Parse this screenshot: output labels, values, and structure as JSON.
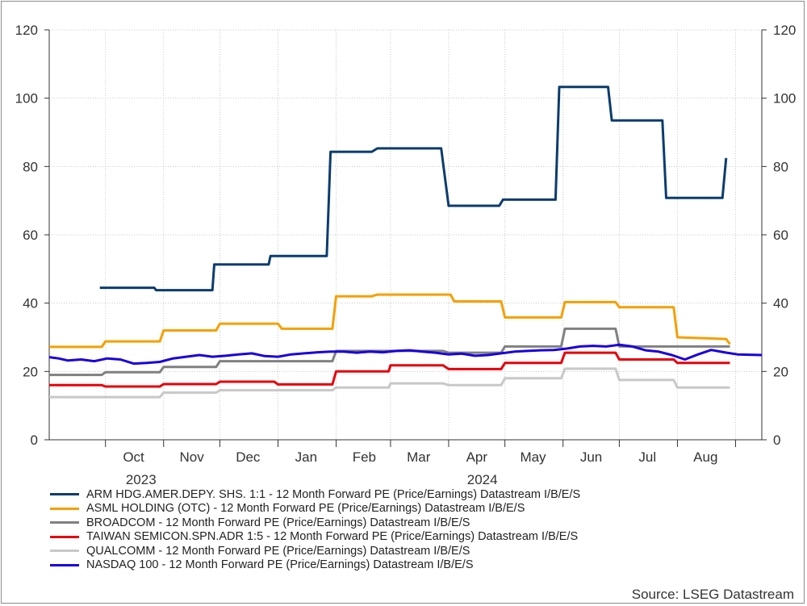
{
  "chart_data": {
    "type": "line",
    "source": "Source: LSEG Datastream",
    "ylim": [
      0,
      120
    ],
    "yticks": [
      0,
      20,
      40,
      60,
      80,
      100,
      120
    ],
    "xlim": [
      "2023-09-01",
      "2024-09-15"
    ],
    "xticks": [
      {
        "date": "2023-10-01",
        "label": "Oct"
      },
      {
        "date": "2023-11-01",
        "label": "Nov"
      },
      {
        "date": "2023-12-01",
        "label": "Dec"
      },
      {
        "date": "2024-01-01",
        "label": "Jan"
      },
      {
        "date": "2024-02-01",
        "label": "Feb"
      },
      {
        "date": "2024-03-01",
        "label": "Mar"
      },
      {
        "date": "2024-04-01",
        "label": "Apr"
      },
      {
        "date": "2024-05-01",
        "label": "May"
      },
      {
        "date": "2024-06-01",
        "label": "Jun"
      },
      {
        "date": "2024-07-01",
        "label": "Jul"
      },
      {
        "date": "2024-08-01",
        "label": "Aug"
      }
    ],
    "year_labels": [
      {
        "date": "2023-11-01",
        "label": "2023"
      },
      {
        "date": "2024-05-01",
        "label": "2024"
      }
    ],
    "grid": true,
    "legend_position": "bottom",
    "series": [
      {
        "name": "ARM HDG.AMER.DEPY. SHS. 1:1 - 12 Month Forward PE (Price/Earnings) Datastream I/B/E/S",
        "color": "#0b3c6e",
        "points": [
          [
            "2023-09-28",
            44.5
          ],
          [
            "2023-10-27",
            44.5
          ],
          [
            "2023-10-28",
            43.8
          ],
          [
            "2023-11-27",
            43.8
          ],
          [
            "2023-11-28",
            51.3
          ],
          [
            "2023-12-27",
            51.3
          ],
          [
            "2023-12-28",
            53.8
          ],
          [
            "2024-01-27",
            53.8
          ],
          [
            "2024-01-29",
            84.3
          ],
          [
            "2024-02-20",
            84.3
          ],
          [
            "2024-02-23",
            85.3
          ],
          [
            "2024-03-28",
            85.3
          ],
          [
            "2024-04-01",
            68.5
          ],
          [
            "2024-04-28",
            68.5
          ],
          [
            "2024-04-30",
            70.3
          ],
          [
            "2024-05-28",
            70.3
          ],
          [
            "2024-05-30",
            103.3
          ],
          [
            "2024-06-25",
            103.3
          ],
          [
            "2024-06-27",
            93.5
          ],
          [
            "2024-07-24",
            93.5
          ],
          [
            "2024-07-26",
            70.8
          ],
          [
            "2024-08-25",
            70.8
          ],
          [
            "2024-08-27",
            82.5
          ]
        ]
      },
      {
        "name": "ASML HOLDING (OTC) - 12 Month Forward PE (Price/Earnings) Datastream I/B/E/S",
        "color": "#f5a000",
        "points": [
          [
            "2023-09-01",
            27.2
          ],
          [
            "2023-09-29",
            27.2
          ],
          [
            "2023-10-01",
            28.8
          ],
          [
            "2023-10-30",
            28.8
          ],
          [
            "2023-11-01",
            32.0
          ],
          [
            "2023-11-29",
            32.0
          ],
          [
            "2023-12-01",
            34.0
          ],
          [
            "2024-01-01",
            34.0
          ],
          [
            "2024-01-03",
            32.5
          ],
          [
            "2024-01-30",
            32.5
          ],
          [
            "2024-02-01",
            42.0
          ],
          [
            "2024-02-20",
            42.0
          ],
          [
            "2024-02-23",
            42.5
          ],
          [
            "2024-04-02",
            42.5
          ],
          [
            "2024-04-04",
            40.5
          ],
          [
            "2024-04-29",
            40.5
          ],
          [
            "2024-05-01",
            35.8
          ],
          [
            "2024-05-31",
            35.8
          ],
          [
            "2024-06-02",
            40.3
          ],
          [
            "2024-06-29",
            40.3
          ],
          [
            "2024-07-01",
            38.8
          ],
          [
            "2024-07-30",
            38.8
          ],
          [
            "2024-08-01",
            30.0
          ],
          [
            "2024-08-27",
            29.5
          ],
          [
            "2024-08-29",
            28.0
          ]
        ]
      },
      {
        "name": "BROADCOM - 12 Month Forward PE (Price/Earnings) Datastream I/B/E/S",
        "color": "#808080",
        "points": [
          [
            "2023-09-01",
            19.0
          ],
          [
            "2023-09-29",
            19.0
          ],
          [
            "2023-10-01",
            19.8
          ],
          [
            "2023-10-30",
            19.8
          ],
          [
            "2023-11-01",
            21.3
          ],
          [
            "2023-11-29",
            21.3
          ],
          [
            "2023-12-01",
            23.0
          ],
          [
            "2024-01-30",
            23.0
          ],
          [
            "2024-02-01",
            26.0
          ],
          [
            "2024-03-29",
            26.0
          ],
          [
            "2024-04-01",
            25.5
          ],
          [
            "2024-04-29",
            25.5
          ],
          [
            "2024-05-01",
            27.3
          ],
          [
            "2024-05-31",
            27.3
          ],
          [
            "2024-06-02",
            32.5
          ],
          [
            "2024-06-29",
            32.5
          ],
          [
            "2024-07-01",
            27.3
          ],
          [
            "2024-08-29",
            27.3
          ]
        ]
      },
      {
        "name": "TAIWAN SEMICON.SPN.ADR 1:5 - 12 Month Forward PE (Price/Earnings) Datastream I/B/E/S",
        "color": "#e8000b",
        "points": [
          [
            "2023-09-01",
            16.0
          ],
          [
            "2023-09-29",
            16.0
          ],
          [
            "2023-10-01",
            15.6
          ],
          [
            "2023-10-30",
            15.6
          ],
          [
            "2023-11-01",
            16.3
          ],
          [
            "2023-11-29",
            16.3
          ],
          [
            "2023-12-01",
            17.0
          ],
          [
            "2023-12-30",
            17.0
          ],
          [
            "2024-01-01",
            16.2
          ],
          [
            "2024-01-30",
            16.2
          ],
          [
            "2024-02-01",
            20.0
          ],
          [
            "2024-02-29",
            20.0
          ],
          [
            "2024-03-01",
            21.8
          ],
          [
            "2024-03-29",
            21.8
          ],
          [
            "2024-04-01",
            20.7
          ],
          [
            "2024-04-29",
            20.7
          ],
          [
            "2024-05-01",
            22.5
          ],
          [
            "2024-05-31",
            22.5
          ],
          [
            "2024-06-02",
            25.5
          ],
          [
            "2024-06-29",
            25.5
          ],
          [
            "2024-07-01",
            23.5
          ],
          [
            "2024-07-30",
            23.5
          ],
          [
            "2024-08-01",
            22.5
          ],
          [
            "2024-08-29",
            22.5
          ]
        ]
      },
      {
        "name": "QUALCOMM - 12 Month Forward PE (Price/Earnings) Datastream I/B/E/S",
        "color": "#c8c8c8",
        "points": [
          [
            "2023-09-01",
            12.5
          ],
          [
            "2023-10-30",
            12.5
          ],
          [
            "2023-11-01",
            13.8
          ],
          [
            "2023-11-29",
            13.8
          ],
          [
            "2023-12-01",
            14.5
          ],
          [
            "2024-01-30",
            14.5
          ],
          [
            "2024-02-01",
            15.3
          ],
          [
            "2024-02-29",
            15.3
          ],
          [
            "2024-03-01",
            16.5
          ],
          [
            "2024-03-29",
            16.5
          ],
          [
            "2024-04-01",
            16.0
          ],
          [
            "2024-04-29",
            16.0
          ],
          [
            "2024-05-01",
            18.0
          ],
          [
            "2024-05-31",
            18.0
          ],
          [
            "2024-06-02",
            20.8
          ],
          [
            "2024-06-29",
            20.8
          ],
          [
            "2024-07-01",
            17.5
          ],
          [
            "2024-07-30",
            17.5
          ],
          [
            "2024-08-01",
            15.3
          ],
          [
            "2024-08-29",
            15.3
          ]
        ]
      },
      {
        "name": "NASDAQ 100 - 12 Month Forward PE (Price/Earnings) Datastream I/B/E/S",
        "color": "#1a00dd",
        "points": [
          [
            "2023-09-01",
            24.2
          ],
          [
            "2023-09-06",
            23.8
          ],
          [
            "2023-09-11",
            23.2
          ],
          [
            "2023-09-18",
            23.5
          ],
          [
            "2023-09-25",
            23.0
          ],
          [
            "2023-10-02",
            23.8
          ],
          [
            "2023-10-09",
            23.5
          ],
          [
            "2023-10-16",
            22.3
          ],
          [
            "2023-10-23",
            22.5
          ],
          [
            "2023-10-30",
            22.8
          ],
          [
            "2023-11-06",
            23.8
          ],
          [
            "2023-11-13",
            24.3
          ],
          [
            "2023-11-20",
            24.8
          ],
          [
            "2023-11-27",
            24.3
          ],
          [
            "2023-12-04",
            24.6
          ],
          [
            "2023-12-11",
            25.0
          ],
          [
            "2023-12-18",
            25.3
          ],
          [
            "2023-12-25",
            24.5
          ],
          [
            "2024-01-01",
            24.3
          ],
          [
            "2024-01-08",
            25.0
          ],
          [
            "2024-01-15",
            25.3
          ],
          [
            "2024-01-22",
            25.6
          ],
          [
            "2024-01-29",
            25.8
          ],
          [
            "2024-02-05",
            25.8
          ],
          [
            "2024-02-12",
            25.5
          ],
          [
            "2024-02-19",
            25.8
          ],
          [
            "2024-02-26",
            25.6
          ],
          [
            "2024-03-04",
            26.0
          ],
          [
            "2024-03-11",
            26.2
          ],
          [
            "2024-03-18",
            25.8
          ],
          [
            "2024-03-25",
            25.5
          ],
          [
            "2024-04-01",
            25.0
          ],
          [
            "2024-04-08",
            25.2
          ],
          [
            "2024-04-15",
            24.6
          ],
          [
            "2024-04-22",
            24.8
          ],
          [
            "2024-04-29",
            25.3
          ],
          [
            "2024-05-06",
            25.8
          ],
          [
            "2024-05-13",
            26.0
          ],
          [
            "2024-05-20",
            26.2
          ],
          [
            "2024-05-27",
            26.3
          ],
          [
            "2024-06-03",
            26.7
          ],
          [
            "2024-06-10",
            27.3
          ],
          [
            "2024-06-17",
            27.5
          ],
          [
            "2024-06-24",
            27.3
          ],
          [
            "2024-07-01",
            27.8
          ],
          [
            "2024-07-08",
            27.3
          ],
          [
            "2024-07-15",
            26.2
          ],
          [
            "2024-07-22",
            25.8
          ],
          [
            "2024-07-29",
            24.8
          ],
          [
            "2024-08-05",
            23.5
          ],
          [
            "2024-08-12",
            25.0
          ],
          [
            "2024-08-19",
            26.3
          ],
          [
            "2024-08-26",
            25.6
          ],
          [
            "2024-09-02",
            25.0
          ],
          [
            "2024-09-15",
            24.8
          ]
        ]
      }
    ]
  }
}
